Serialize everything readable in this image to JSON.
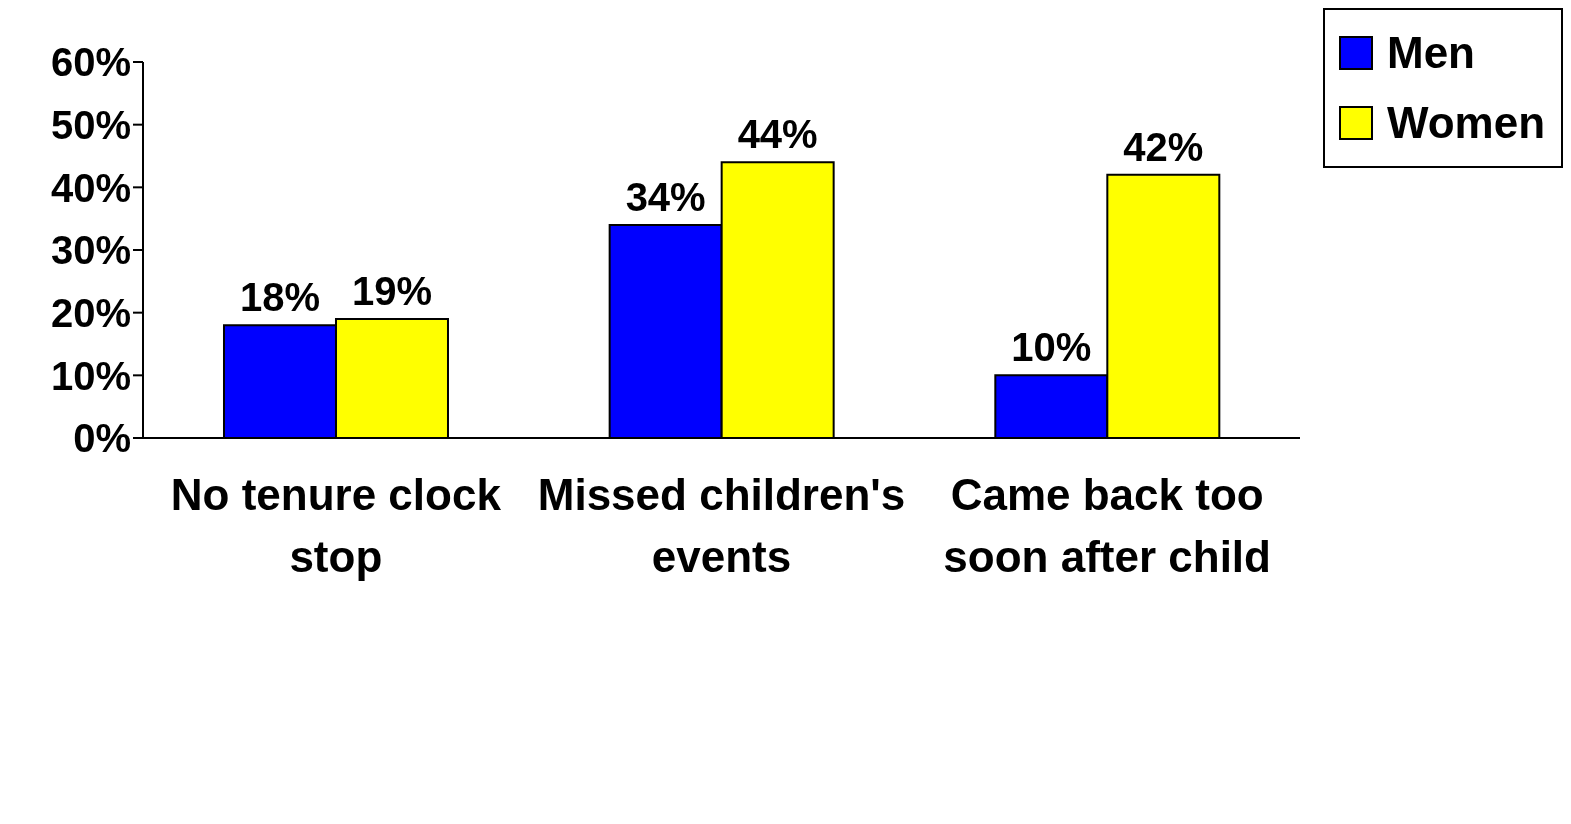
{
  "chart_data": {
    "type": "bar",
    "categories": [
      "No tenure clock stop",
      "Missed children's events",
      "Came back too soon after child"
    ],
    "series": [
      {
        "name": "Men",
        "color": "#0000ff",
        "values": [
          18,
          34,
          10
        ],
        "value_labels": [
          "18%",
          "34%",
          "10%"
        ]
      },
      {
        "name": "Women",
        "color": "#ffff00",
        "values": [
          19,
          44,
          42
        ],
        "value_labels": [
          "19%",
          "44%",
          "42%"
        ]
      }
    ],
    "ylim": [
      0,
      60
    ],
    "yticks": [
      {
        "value": 0,
        "label": "0%"
      },
      {
        "value": 10,
        "label": "10%"
      },
      {
        "value": 20,
        "label": "20%"
      },
      {
        "value": 30,
        "label": "30%"
      },
      {
        "value": 40,
        "label": "40%"
      },
      {
        "value": 50,
        "label": "50%"
      },
      {
        "value": 60,
        "label": "60%"
      }
    ],
    "grid": false,
    "legend": "top right"
  }
}
